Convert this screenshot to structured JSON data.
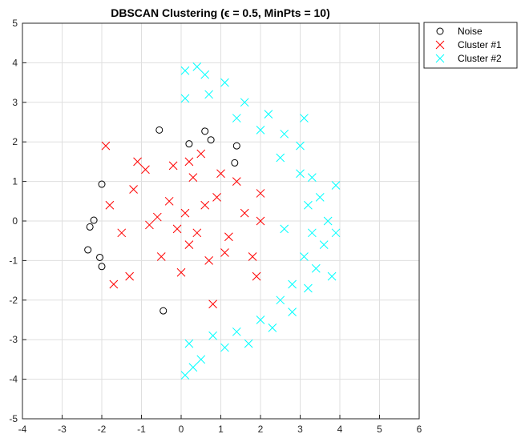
{
  "chart_data": {
    "type": "scatter",
    "title": "DBSCAN Clustering (ϵ = 0.5, MinPts = 10)",
    "xlabel": "",
    "ylabel": "",
    "xlim": [
      -4,
      6
    ],
    "ylim": [
      -5,
      5
    ],
    "xticks": [
      -4,
      -3,
      -2,
      -1,
      0,
      1,
      2,
      3,
      4,
      5,
      6
    ],
    "yticks": [
      -5,
      -4,
      -3,
      -2,
      -1,
      0,
      1,
      2,
      3,
      4,
      5
    ],
    "grid": true,
    "legend_position": "outside top-right",
    "series": [
      {
        "name": "Noise",
        "marker": "circle",
        "color": "#000000",
        "points": [
          [
            -2.0,
            0.93
          ],
          [
            -2.2,
            0.02
          ],
          [
            -2.3,
            -0.15
          ],
          [
            -2.35,
            -0.73
          ],
          [
            -2.05,
            -0.92
          ],
          [
            -2.0,
            -1.15
          ],
          [
            -0.55,
            2.3
          ],
          [
            0.2,
            1.95
          ],
          [
            0.6,
            2.27
          ],
          [
            0.75,
            2.05
          ],
          [
            1.4,
            1.9
          ],
          [
            1.35,
            1.47
          ],
          [
            -0.45,
            -2.27
          ]
        ]
      },
      {
        "name": "Cluster #1",
        "marker": "x",
        "color": "#ff0000",
        "points": [
          [
            0.1,
            0.2
          ],
          [
            -0.3,
            0.5
          ],
          [
            0.4,
            -0.3
          ],
          [
            -0.8,
            -0.1
          ],
          [
            0.9,
            0.6
          ],
          [
            -1.2,
            0.8
          ],
          [
            0.3,
            1.1
          ],
          [
            -0.5,
            -0.9
          ],
          [
            1.2,
            -0.4
          ],
          [
            -1.5,
            -0.3
          ],
          [
            0.7,
            -1.0
          ],
          [
            -0.2,
            1.4
          ],
          [
            1.6,
            0.2
          ],
          [
            -1.8,
            0.4
          ],
          [
            0.0,
            -1.3
          ],
          [
            1.0,
            1.2
          ],
          [
            -0.9,
            1.3
          ],
          [
            1.8,
            -0.9
          ],
          [
            -1.3,
            -1.4
          ],
          [
            0.5,
            1.7
          ],
          [
            -1.9,
            1.9
          ],
          [
            0.8,
            -2.1
          ],
          [
            1.9,
            -1.4
          ],
          [
            2.0,
            0.7
          ],
          [
            2.0,
            0.0
          ],
          [
            -1.7,
            -1.6
          ],
          [
            0.2,
            -0.6
          ],
          [
            -0.6,
            0.1
          ],
          [
            0.6,
            0.4
          ],
          [
            -0.1,
            -0.2
          ],
          [
            1.4,
            1.0
          ],
          [
            -1.1,
            1.5
          ],
          [
            0.2,
            1.5
          ],
          [
            1.1,
            -0.8
          ]
        ]
      },
      {
        "name": "Cluster #2",
        "marker": "x",
        "color": "#00ffff",
        "points": [
          [
            0.1,
            3.8
          ],
          [
            0.6,
            3.7
          ],
          [
            1.1,
            3.5
          ],
          [
            1.6,
            3.0
          ],
          [
            2.2,
            2.7
          ],
          [
            2.6,
            2.2
          ],
          [
            3.0,
            1.9
          ],
          [
            3.3,
            1.1
          ],
          [
            3.5,
            0.6
          ],
          [
            3.7,
            0.0
          ],
          [
            3.6,
            -0.6
          ],
          [
            3.4,
            -1.2
          ],
          [
            3.2,
            -1.7
          ],
          [
            2.8,
            -2.3
          ],
          [
            2.3,
            -2.7
          ],
          [
            1.7,
            -3.1
          ],
          [
            1.1,
            -3.2
          ],
          [
            0.5,
            -3.5
          ],
          [
            0.1,
            -3.9
          ],
          [
            0.1,
            3.1
          ],
          [
            0.7,
            3.2
          ],
          [
            1.4,
            2.6
          ],
          [
            2.0,
            2.3
          ],
          [
            2.5,
            1.6
          ],
          [
            3.0,
            1.2
          ],
          [
            3.2,
            0.4
          ],
          [
            3.3,
            -0.3
          ],
          [
            3.1,
            -0.9
          ],
          [
            2.8,
            -1.6
          ],
          [
            2.5,
            -2.0
          ],
          [
            2.0,
            -2.5
          ],
          [
            1.4,
            -2.8
          ],
          [
            0.8,
            -2.9
          ],
          [
            0.2,
            -3.1
          ],
          [
            2.6,
            -0.2
          ],
          [
            3.9,
            0.9
          ],
          [
            3.8,
            -1.4
          ],
          [
            3.1,
            2.6
          ],
          [
            3.9,
            -0.3
          ],
          [
            0.4,
            3.9
          ],
          [
            0.3,
            -3.7
          ]
        ]
      }
    ]
  }
}
